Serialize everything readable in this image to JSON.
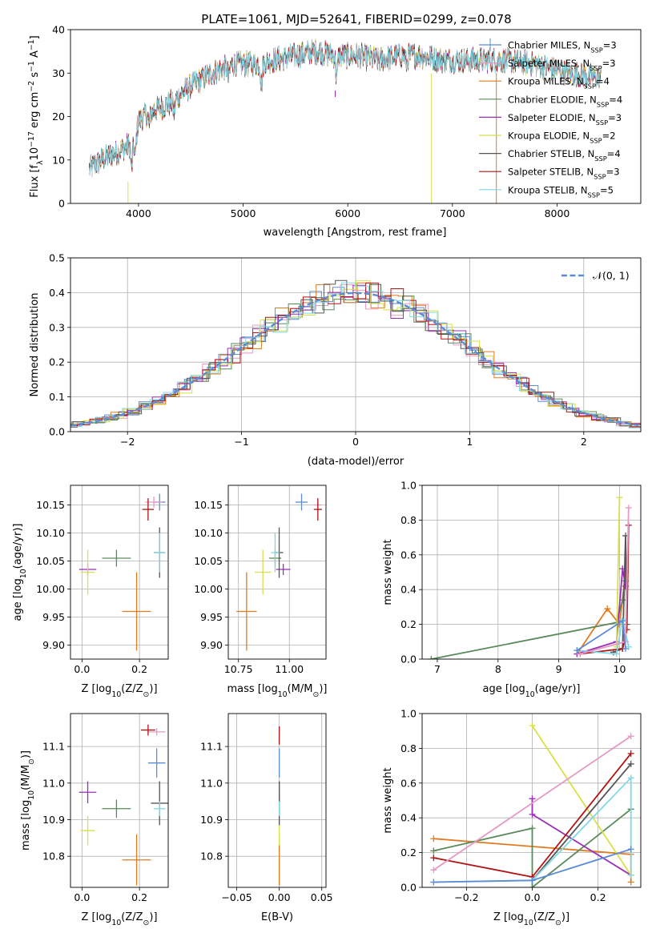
{
  "title": "PLATE=1061, MJD=52641, FIBERID=0299, z=0.078",
  "colors": {
    "Chabrier MILES": "#5b8cd6",
    "Salpeter MILES": "#e59ac4",
    "Kroupa MILES": "#e07b20",
    "Chabrier ELODIE": "#5a8a5a",
    "Salpeter ELODIE": "#9b2fb8",
    "Kroupa ELODIE": "#d8e04a",
    "Chabrier STELIB": "#555555",
    "Salpeter STELIB": "#b01515",
    "Kroupa STELIB": "#80d8e6",
    "normal": "#5b8cd6"
  },
  "chart_data": [
    {
      "id": "spectrum",
      "type": "line",
      "title": "PLATE=1061, MJD=52641, FIBERID=0299, z=0.078",
      "xlabel": "wavelength [Angstrom, rest frame]",
      "ylabel_main": "Flux [f",
      "ylabel_sub": "λ",
      "ylabel_rest": "10",
      "ylabel_sup": "−17",
      "ylabel_unit": " erg cm",
      "ylabel_sup2": "−2",
      "ylabel_s": " s",
      "ylabel_sup3": "−1",
      "ylabel_end": " A",
      "ylabel_sup4": "−1",
      "ylabel_close": "]",
      "xlim": [
        3350,
        8800
      ],
      "ylim": [
        0,
        40
      ],
      "xticks": [
        "4000",
        "5000",
        "6000",
        "7000",
        "8000"
      ],
      "yticks": [
        "0",
        "10",
        "20",
        "30",
        "40"
      ],
      "continuum": {
        "x": [
          3530,
          3650,
          3800,
          3950,
          4000,
          4100,
          4300,
          4500,
          4700,
          4900,
          5100,
          5300,
          5500,
          5700,
          5900,
          6100,
          6300,
          6500,
          6700,
          6900,
          7100,
          7300,
          7500,
          7800,
          8100,
          8400
        ],
        "y": [
          8,
          10,
          12,
          14,
          19,
          21,
          23,
          27,
          30,
          32,
          32,
          33,
          34,
          35,
          34,
          34,
          33,
          34,
          34,
          33,
          33,
          33,
          33,
          32,
          30,
          29
        ]
      },
      "legend": [
        {
          "label": "Chabrier MILES, N",
          "sub": "SSP",
          "tail": "=3"
        },
        {
          "label": "Salpeter MILES, N",
          "sub": "SSP",
          "tail": "=3"
        },
        {
          "label": "Kroupa MILES, N",
          "sub": "SSP",
          "tail": "=4"
        },
        {
          "label": "Chabrier ELODIE, N",
          "sub": "SSP",
          "tail": "=4"
        },
        {
          "label": "Salpeter ELODIE, N",
          "sub": "SSP",
          "tail": "=3"
        },
        {
          "label": "Kroupa ELODIE, N",
          "sub": "SSP",
          "tail": "=2"
        },
        {
          "label": "Chabrier STELIB, N",
          "sub": "SSP",
          "tail": "=4"
        },
        {
          "label": "Salpeter STELIB, N",
          "sub": "SSP",
          "tail": "=3"
        },
        {
          "label": "Kroupa STELIB, N",
          "sub": "SSP",
          "tail": "=5"
        }
      ],
      "series_order": [
        "Chabrier MILES",
        "Salpeter MILES",
        "Kroupa MILES",
        "Chabrier ELODIE",
        "Salpeter ELODIE",
        "Kroupa ELODIE",
        "Chabrier STELIB",
        "Salpeter STELIB",
        "Kroupa STELIB"
      ]
    },
    {
      "id": "residuals",
      "type": "line",
      "xlabel": "(data-model)/error",
      "ylabel": "Normed distribution",
      "xlim": [
        -2.5,
        2.5
      ],
      "ylim": [
        0,
        0.5
      ],
      "xticks": [
        "−2",
        "−1",
        "0",
        "1",
        "2"
      ],
      "yticks": [
        "0.0",
        "0.1",
        "0.2",
        "0.3",
        "0.4",
        "0.5"
      ],
      "legend_label": "𝒩(0, 1)"
    },
    {
      "id": "age_vs_Z",
      "type": "scatter",
      "xlabel": "Z [log",
      "xlabel_sub": "10",
      "xlabel_rest": "(Z/Z",
      "xlabel_sub2": "⊙",
      "xlabel_end": ")]",
      "ylabel": "age  [log",
      "ylabel_sub": "10",
      "ylabel_rest": "(age/yr)]",
      "xlim": [
        -0.04,
        0.3
      ],
      "ylim": [
        9.875,
        10.185
      ],
      "xticks": [
        "0.0",
        "0.2"
      ],
      "yticks": [
        "9.90",
        "9.95",
        "10.00",
        "10.05",
        "10.10",
        "10.15"
      ],
      "points": [
        {
          "series": "Chabrier MILES",
          "x": 0.27,
          "y": 10.155,
          "xerr": 0.02,
          "yerr": 0.015
        },
        {
          "series": "Salpeter MILES",
          "x": 0.25,
          "y": 10.155,
          "xerr": 0.03,
          "yerr": 0.01
        },
        {
          "series": "Kroupa MILES",
          "x": 0.19,
          "y": 9.96,
          "xerr": 0.05,
          "yerr": 0.07
        },
        {
          "series": "Chabrier ELODIE",
          "x": 0.12,
          "y": 10.055,
          "xerr": 0.05,
          "yerr": 0.015
        },
        {
          "series": "Salpeter ELODIE",
          "x": 0.02,
          "y": 10.035,
          "xerr": 0.03,
          "yerr": 0.01
        },
        {
          "series": "Kroupa ELODIE",
          "x": 0.02,
          "y": 10.03,
          "xerr": 0.025,
          "yerr": 0.04
        },
        {
          "series": "Chabrier STELIB",
          "x": 0.27,
          "y": 10.065,
          "xerr": 0.02,
          "yerr": 0.045
        },
        {
          "series": "Salpeter STELIB",
          "x": 0.23,
          "y": 10.142,
          "xerr": 0.02,
          "yerr": 0.02
        },
        {
          "series": "Kroupa STELIB",
          "x": 0.27,
          "y": 10.065,
          "xerr": 0.02,
          "yerr": 0.035
        }
      ]
    },
    {
      "id": "age_vs_mass",
      "type": "scatter",
      "xlabel": "mass [log",
      "xlabel_sub": "10",
      "xlabel_rest": "(M/M",
      "xlabel_sub2": "⊙",
      "xlabel_end": ")]",
      "xlim": [
        10.7,
        11.18
      ],
      "ylim": [
        9.875,
        10.185
      ],
      "xticks": [
        "10.75",
        "11.00"
      ],
      "yticks": [
        "9.90",
        "9.95",
        "10.00",
        "10.05",
        "10.10",
        "10.15"
      ],
      "points": [
        {
          "series": "Chabrier MILES",
          "x": 11.06,
          "y": 10.155,
          "xerr": 0.03,
          "yerr": 0.015
        },
        {
          "series": "Salpeter MILES",
          "x": 11.14,
          "y": 10.15,
          "xerr": 0.02,
          "yerr": 0.01
        },
        {
          "series": "Kroupa MILES",
          "x": 10.79,
          "y": 9.96,
          "xerr": 0.05,
          "yerr": 0.07
        },
        {
          "series": "Chabrier ELODIE",
          "x": 10.93,
          "y": 10.055,
          "xerr": 0.03,
          "yerr": 0.015
        },
        {
          "series": "Salpeter ELODIE",
          "x": 10.97,
          "y": 10.035,
          "xerr": 0.035,
          "yerr": 0.01
        },
        {
          "series": "Kroupa ELODIE",
          "x": 10.87,
          "y": 10.03,
          "xerr": 0.04,
          "yerr": 0.04
        },
        {
          "series": "Chabrier STELIB",
          "x": 10.95,
          "y": 10.065,
          "xerr": 0.02,
          "yerr": 0.045
        },
        {
          "series": "Salpeter STELIB",
          "x": 11.14,
          "y": 10.142,
          "xerr": 0.02,
          "yerr": 0.02
        },
        {
          "series": "Kroupa STELIB",
          "x": 10.93,
          "y": 10.065,
          "xerr": 0.02,
          "yerr": 0.035
        }
      ]
    },
    {
      "id": "weight_vs_age",
      "type": "line",
      "xlabel": "age  [log",
      "xlabel_sub": "10",
      "xlabel_rest": "(age/yr)]",
      "ylabel": "mass weight",
      "xlim": [
        6.75,
        10.35
      ],
      "ylim": [
        0,
        1
      ],
      "xticks": [
        "7",
        "8",
        "9",
        "10"
      ],
      "yticks": [
        "0.0",
        "0.2",
        "0.4",
        "0.6",
        "0.8",
        "1.0"
      ],
      "lines": [
        {
          "series": "Kroupa MILES",
          "x": [
            9.3,
            9.8,
            10.0,
            10.1
          ],
          "y": [
            0.03,
            0.29,
            0.2,
            0.5
          ]
        },
        {
          "series": "Chabrier ELODIE",
          "x": [
            6.9,
            9.95,
            10.05,
            10.1
          ],
          "y": [
            0.0,
            0.21,
            0.34,
            0.45
          ]
        },
        {
          "series": "Salpeter ELODIE",
          "x": [
            9.3,
            9.95,
            10.05,
            10.1
          ],
          "y": [
            0.03,
            0.1,
            0.52,
            0.42
          ]
        },
        {
          "series": "Kroupa ELODIE",
          "x": [
            9.95,
            10.0
          ],
          "y": [
            0.07,
            0.93
          ]
        },
        {
          "series": "Chabrier STELIB",
          "x": [
            9.9,
            10.05,
            10.1,
            10.12
          ],
          "y": [
            0.04,
            0.06,
            0.71,
            0.2
          ]
        },
        {
          "series": "Salpeter STELIB",
          "x": [
            9.35,
            10.05,
            10.12,
            10.15
          ],
          "y": [
            0.03,
            0.06,
            0.17,
            0.77
          ]
        },
        {
          "series": "Kroupa STELIB",
          "x": [
            9.3,
            9.95,
            10.05,
            10.15
          ],
          "y": [
            0.05,
            0.03,
            0.23,
            0.07
          ]
        },
        {
          "series": "Salpeter MILES",
          "x": [
            9.35,
            10.1,
            10.15
          ],
          "y": [
            0.03,
            0.1,
            0.87
          ]
        },
        {
          "series": "Chabrier MILES",
          "x": [
            9.3,
            10.05,
            10.1
          ],
          "y": [
            0.05,
            0.22,
            0.06
          ]
        }
      ]
    },
    {
      "id": "mass_vs_Z",
      "type": "scatter",
      "xlabel": "Z [log",
      "xlabel_sub": "10",
      "xlabel_rest": "(Z/Z",
      "xlabel_sub2": "⊙",
      "xlabel_end": ")]",
      "ylabel": "mass [log",
      "ylabel_sub": "10",
      "ylabel_rest": "(M/M",
      "ylabel_sub2": "⊙",
      "ylabel_end": ")]",
      "xlim": [
        -0.04,
        0.3
      ],
      "ylim": [
        10.715,
        11.19
      ],
      "xticks": [
        "0.0",
        "0.2"
      ],
      "yticks": [
        "10.8",
        "10.9",
        "11.0",
        "11.1"
      ],
      "points": [
        {
          "series": "Chabrier MILES",
          "x": 0.26,
          "y": 11.055,
          "xerr": 0.03,
          "yerr": 0.04
        },
        {
          "series": "Salpeter MILES",
          "x": 0.26,
          "y": 11.14,
          "xerr": 0.03,
          "yerr": 0.01
        },
        {
          "series": "Kroupa MILES",
          "x": 0.19,
          "y": 10.79,
          "xerr": 0.05,
          "yerr": 0.07
        },
        {
          "series": "Chabrier ELODIE",
          "x": 0.12,
          "y": 10.93,
          "xerr": 0.05,
          "yerr": 0.025
        },
        {
          "series": "Salpeter ELODIE",
          "x": 0.02,
          "y": 10.975,
          "xerr": 0.03,
          "yerr": 0.03
        },
        {
          "series": "Kroupa ELODIE",
          "x": 0.02,
          "y": 10.87,
          "xerr": 0.025,
          "yerr": 0.04
        },
        {
          "series": "Chabrier STELIB",
          "x": 0.27,
          "y": 10.945,
          "xerr": 0.03,
          "yerr": 0.06
        },
        {
          "series": "Salpeter STELIB",
          "x": 0.23,
          "y": 11.145,
          "xerr": 0.025,
          "yerr": 0.015
        },
        {
          "series": "Kroupa STELIB",
          "x": 0.27,
          "y": 10.93,
          "xerr": 0.02,
          "yerr": 0.02
        }
      ]
    },
    {
      "id": "mass_vs_ebv",
      "type": "scatter",
      "xlabel": "E(B-V)",
      "xlim": [
        -0.06,
        0.055
      ],
      "ylim": [
        10.715,
        11.19
      ],
      "xticks": [
        "−0.05",
        "0.00",
        "0.05"
      ],
      "yticks": [
        "10.8",
        "10.9",
        "11.0",
        "11.1"
      ],
      "points": [
        {
          "series": "Chabrier MILES",
          "x": 0,
          "y": 11.055,
          "xerr": 0,
          "yerr": 0.04
        },
        {
          "series": "Salpeter MILES",
          "x": 0,
          "y": 11.14,
          "xerr": 0,
          "yerr": 0.01
        },
        {
          "series": "Kroupa MILES",
          "x": 0,
          "y": 10.79,
          "xerr": 0,
          "yerr": 0.07
        },
        {
          "series": "Chabrier ELODIE",
          "x": 0,
          "y": 10.93,
          "xerr": 0,
          "yerr": 0.025
        },
        {
          "series": "Salpeter ELODIE",
          "x": 0,
          "y": 10.975,
          "xerr": 0,
          "yerr": 0.03
        },
        {
          "series": "Kroupa ELODIE",
          "x": 0,
          "y": 10.87,
          "xerr": 0,
          "yerr": 0.04
        },
        {
          "series": "Chabrier STELIB",
          "x": 0,
          "y": 10.945,
          "xerr": 0,
          "yerr": 0.06
        },
        {
          "series": "Salpeter STELIB",
          "x": 0,
          "y": 11.13,
          "xerr": 0,
          "yerr": 0.025
        },
        {
          "series": "Kroupa STELIB",
          "x": 0,
          "y": 10.93,
          "xerr": 0,
          "yerr": 0.02
        }
      ]
    },
    {
      "id": "weight_vs_Z",
      "type": "line",
      "xlabel": "Z [log",
      "xlabel_sub": "10",
      "xlabel_rest": "(Z/Z",
      "xlabel_sub2": "⊙",
      "xlabel_end": ")]",
      "ylabel": "mass weight",
      "xlim": [
        -0.335,
        0.33
      ],
      "ylim": [
        0,
        1
      ],
      "xticks": [
        "−0.2",
        "0.0",
        "0.2"
      ],
      "yticks": [
        "0.0",
        "0.2",
        "0.4",
        "0.6",
        "0.8",
        "1.0"
      ],
      "lines": [
        {
          "series": "Kroupa MILES",
          "x": [
            -0.3,
            0.3,
            0.3
          ],
          "y": [
            0.28,
            0.19,
            0.03
          ]
        },
        {
          "series": "Chabrier ELODIE",
          "x": [
            -0.3,
            0.0,
            0.0,
            0.3,
            0.3
          ],
          "y": [
            0.21,
            0.34,
            0.0,
            0.45,
            0.45
          ]
        },
        {
          "series": "Salpeter ELODIE",
          "x": [
            0.0,
            0.0,
            0.3
          ],
          "y": [
            0.51,
            0.42,
            0.07
          ]
        },
        {
          "series": "Kroupa ELODIE",
          "x": [
            0.0,
            0.3
          ],
          "y": [
            0.93,
            0.07
          ]
        },
        {
          "series": "Chabrier STELIB",
          "x": [
            0.0,
            0.3
          ],
          "y": [
            0.04,
            0.71
          ]
        },
        {
          "series": "Salpeter STELIB",
          "x": [
            -0.3,
            0.0,
            0.3
          ],
          "y": [
            0.17,
            0.06,
            0.77
          ]
        },
        {
          "series": "Kroupa STELIB",
          "x": [
            -0.3,
            0.0,
            0.3,
            0.3
          ],
          "y": [
            0.03,
            0.04,
            0.63,
            0.07
          ]
        },
        {
          "series": "Salpeter MILES",
          "x": [
            -0.3,
            0.3
          ],
          "y": [
            0.1,
            0.87
          ]
        },
        {
          "series": "Chabrier MILES",
          "x": [
            -0.3,
            0.0,
            0.3
          ],
          "y": [
            0.03,
            0.04,
            0.22
          ]
        }
      ]
    }
  ]
}
